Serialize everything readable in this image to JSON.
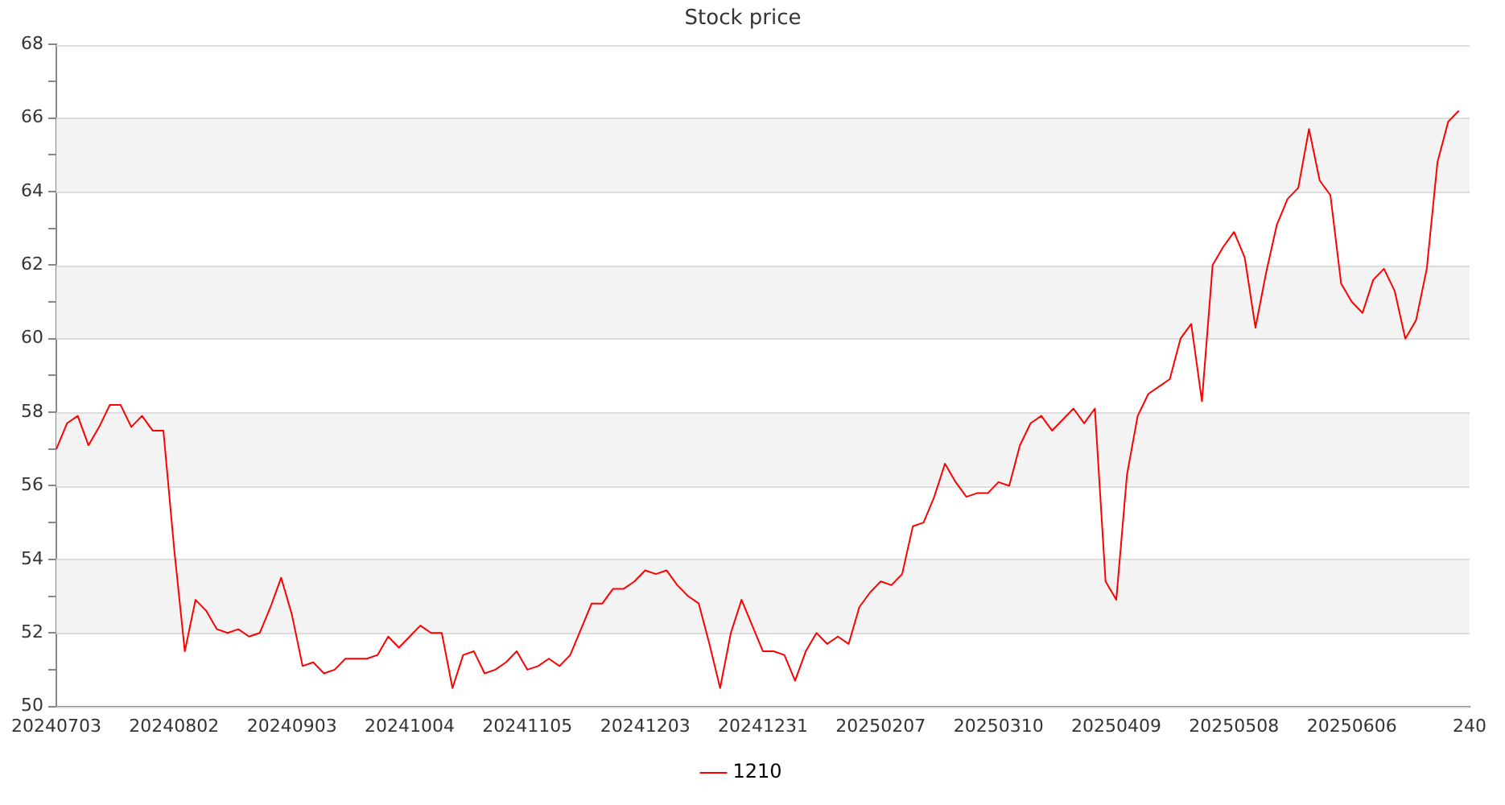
{
  "chart_data": {
    "type": "line",
    "title": "Stock price",
    "categories": [
      "20240703",
      null,
      null,
      null,
      null,
      null,
      null,
      null,
      null,
      null,
      null,
      "20240802",
      null,
      null,
      null,
      null,
      null,
      null,
      null,
      null,
      null,
      null,
      "20240903",
      null,
      null,
      null,
      null,
      null,
      null,
      null,
      null,
      null,
      null,
      "20241004",
      null,
      null,
      null,
      null,
      null,
      null,
      null,
      null,
      null,
      null,
      "20241105",
      null,
      null,
      null,
      null,
      null,
      null,
      null,
      null,
      null,
      null,
      "20241203",
      null,
      null,
      null,
      null,
      null,
      null,
      null,
      null,
      null,
      null,
      "20241231",
      null,
      null,
      null,
      null,
      null,
      null,
      null,
      null,
      null,
      null,
      "20250207",
      null,
      null,
      null,
      null,
      null,
      null,
      null,
      null,
      null,
      null,
      "20250310",
      null,
      null,
      null,
      null,
      null,
      null,
      null,
      null,
      null,
      null,
      "20250409",
      null,
      null,
      null,
      null,
      null,
      null,
      null,
      null,
      null,
      null,
      "20250508",
      null,
      null,
      null,
      null,
      null,
      null,
      null,
      null,
      null,
      null,
      "20250606",
      null,
      null,
      null,
      null,
      null,
      null,
      null,
      null,
      null,
      null,
      "240"
    ],
    "series": [
      {
        "name": "1210",
        "color": "#ff0000",
        "values": [
          57.0,
          57.7,
          57.9,
          57.1,
          57.6,
          58.2,
          58.2,
          57.6,
          57.9,
          57.5,
          57.5,
          54.3,
          51.5,
          52.9,
          52.6,
          52.1,
          52.0,
          52.1,
          51.9,
          52.0,
          52.7,
          53.5,
          52.5,
          51.1,
          51.2,
          50.9,
          51.0,
          51.3,
          51.3,
          51.3,
          51.4,
          51.9,
          51.6,
          51.9,
          52.2,
          52.0,
          52.0,
          50.5,
          51.4,
          51.5,
          50.9,
          51.0,
          51.2,
          51.5,
          51.0,
          51.1,
          51.3,
          51.1,
          51.4,
          52.1,
          52.8,
          52.8,
          53.2,
          53.2,
          53.4,
          53.7,
          53.6,
          53.7,
          53.3,
          53.0,
          52.8,
          51.7,
          50.5,
          52.0,
          52.9,
          52.2,
          51.5,
          51.5,
          51.4,
          50.7,
          51.5,
          52.0,
          51.7,
          51.9,
          51.7,
          52.7,
          53.1,
          53.4,
          53.3,
          53.6,
          54.9,
          55.0,
          55.7,
          56.6,
          56.1,
          55.7,
          55.8,
          55.8,
          56.1,
          56.0,
          57.1,
          57.7,
          57.9,
          57.5,
          57.8,
          58.1,
          57.7,
          58.1,
          53.4,
          52.9,
          56.3,
          57.9,
          58.5,
          58.7,
          58.9,
          60.0,
          60.4,
          58.3,
          62.0,
          62.5,
          62.9,
          62.2,
          60.3,
          61.8,
          63.1,
          63.8,
          64.1,
          65.7,
          64.3,
          63.9,
          61.5,
          61.0,
          60.7,
          61.6,
          61.9,
          61.3,
          60.0,
          60.5,
          61.9,
          64.8,
          65.9,
          66.2,
          null
        ]
      }
    ],
    "ylim": [
      50,
      68
    ],
    "yticks": [
      50,
      {
        "value": 51,
        "label": null
      },
      52,
      {
        "value": 53,
        "label": null
      },
      54,
      {
        "value": 55,
        "label": null
      },
      56,
      {
        "value": 57,
        "label": null
      },
      58,
      {
        "value": 59,
        "label": null
      },
      60,
      {
        "value": 61,
        "label": null
      },
      62,
      {
        "value": 63,
        "label": null
      },
      64,
      {
        "value": 65,
        "label": null
      },
      66,
      {
        "value": 67,
        "label": null
      },
      68
    ],
    "grid": "y",
    "legend": "bottom",
    "marker": "none",
    "line_style": "solid"
  }
}
